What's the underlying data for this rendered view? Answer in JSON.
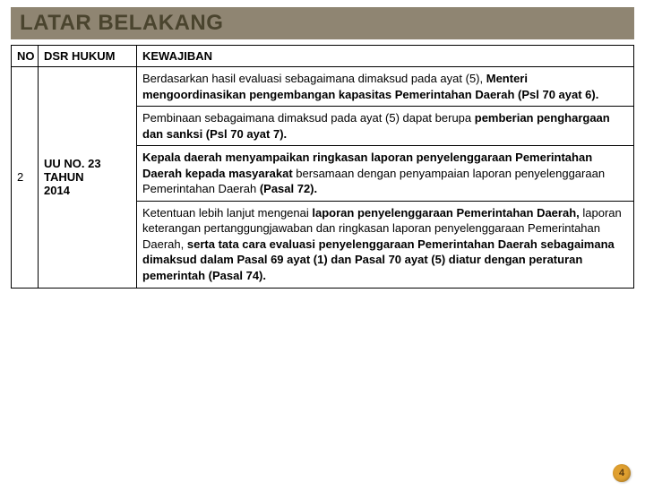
{
  "title": {
    "text": "LATAR BELAKANG",
    "bg_color": "#8f8572",
    "text_color": "#4a442e",
    "fontsize": 24
  },
  "table": {
    "border_color": "#000000",
    "header_bg": "#ffffff",
    "cell_bg": "#ffffff",
    "columns": [
      {
        "key": "no",
        "label": "NO",
        "width": 30,
        "align": "center",
        "fontsize": 10.5
      },
      {
        "key": "dsr",
        "label": "DSR HUKUM",
        "width": 110,
        "align": "left",
        "fontsize": 13
      },
      {
        "key": "kewajiban",
        "label": "KEWAJIBAN",
        "width": "auto",
        "align": "center",
        "fontsize": 13
      }
    ],
    "row": {
      "no": "2",
      "dsr_line1": "UU NO. 23",
      "dsr_line2": "TAHUN",
      "dsr_line3": "2014",
      "cells": [
        {
          "pre": "Berdasarkan hasil evaluasi sebagaimana dimaksud pada ayat (5), ",
          "bold": "Menteri mengoordinasikan pengembangan kapasitas Pemerintahan Daerah  (Psl 70 ayat 6)."
        },
        {
          "pre": "Pembinaan sebagaimana dimaksud pada ayat (5) dapat berupa ",
          "bold": "pemberian penghargaan dan sanksi (Psl 70 ayat 7)."
        },
        {
          "b1": "Kepala daerah menyampaikan ringkasan laporan penyelenggaraan Pemerintahan Daerah kepada masyarakat",
          "mid": " bersamaan dengan penyampaian laporan penyelenggaraan Pemerintahan Daerah ",
          "b2": "(Pasal 72)."
        },
        {
          "pre1": "Ketentuan lebih lanjut mengenai ",
          "b1": "laporan penyelenggaraan Pemerintahan Daerah,",
          "mid1": " laporan keterangan pertanggungjawaban dan ringkasan laporan penyelenggaraan Pemerintahan Daerah, ",
          "b2": "serta tata cara evaluasi penyelenggaraan Pemerintahan Daerah sebagaimana dimaksud dalam Pasal  69 ayat (1) dan Pasal 70 ayat (5) diatur dengan peraturan pemerintah (Pasal  74)."
        }
      ]
    }
  },
  "page_number": "4",
  "page_badge": {
    "bg": "#e0a030",
    "text_color": "#5a3a10"
  }
}
